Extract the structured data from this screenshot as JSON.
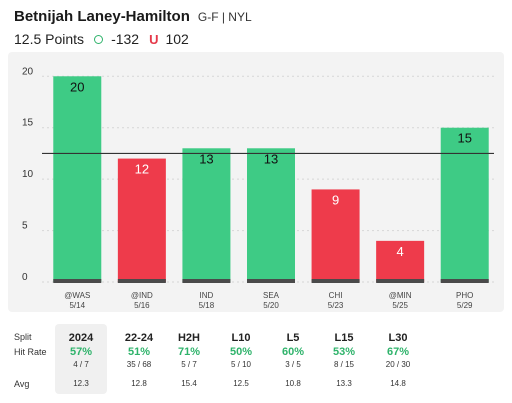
{
  "header": {
    "player_name": "Betnijah Laney-Hamilton",
    "meta": "G-F | NYL",
    "line_label": "12.5 Points",
    "over_odds": "-132",
    "under_symbol": "U",
    "under_odds": "102"
  },
  "colors": {
    "hit": "#3ecb85",
    "miss": "#ee3b4b",
    "bar_base": "#4a4a4a",
    "line": "#333333",
    "card_bg": "#f3f3f3"
  },
  "chart_data": {
    "type": "bar",
    "categories": [
      "@WAS",
      "@IND",
      "IND",
      "SEA",
      "CHI",
      "@MIN",
      "PHO"
    ],
    "dates": [
      "5/14",
      "5/16",
      "5/18",
      "5/20",
      "5/23",
      "5/25",
      "5/29"
    ],
    "values": [
      20,
      12,
      13,
      13,
      9,
      4,
      15
    ],
    "threshold": 12.5,
    "ylim": [
      0,
      21
    ],
    "yticks": [
      0,
      5,
      10,
      15,
      20
    ],
    "grid": true,
    "title": "",
    "xlabel": "",
    "ylabel": ""
  },
  "splits": {
    "row_labels": {
      "split": "Split",
      "hit_rate": "Hit Rate",
      "avg": "Avg"
    },
    "columns": [
      {
        "label": "2024",
        "pct": "57%",
        "frac": "4 / 7",
        "avg": "12.3",
        "selected": true
      },
      {
        "label": "22-24",
        "pct": "51%",
        "frac": "35 / 68",
        "avg": "12.8",
        "selected": false
      },
      {
        "label": "H2H",
        "pct": "71%",
        "frac": "5 / 7",
        "avg": "15.4",
        "selected": false
      },
      {
        "label": "L10",
        "pct": "50%",
        "frac": "5 / 10",
        "avg": "12.5",
        "selected": false
      },
      {
        "label": "L5",
        "pct": "60%",
        "frac": "3 / 5",
        "avg": "10.8",
        "selected": false
      },
      {
        "label": "L15",
        "pct": "53%",
        "frac": "8 / 15",
        "avg": "13.3",
        "selected": false
      },
      {
        "label": "L30",
        "pct": "67%",
        "frac": "20 / 30",
        "avg": "14.8",
        "selected": false
      }
    ]
  }
}
